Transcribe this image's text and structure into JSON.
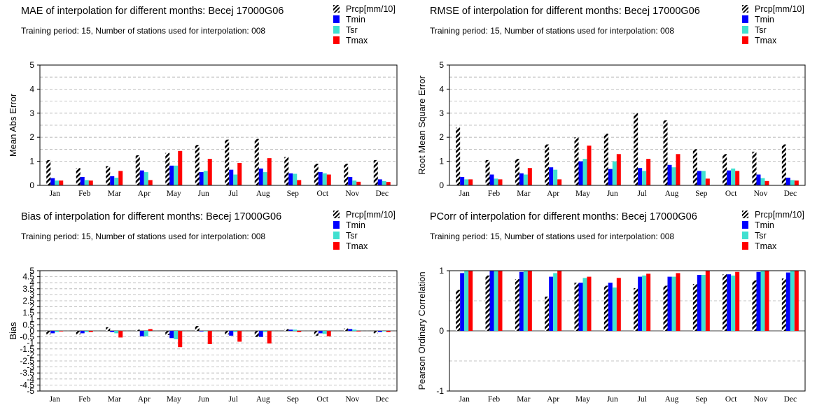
{
  "legend": [
    {
      "name": "Prcp[mm/10]",
      "color": "#000000",
      "pattern": "hatch"
    },
    {
      "name": "Tmin",
      "color": "#0000ff"
    },
    {
      "name": "Tsr",
      "color": "#40e0d0"
    },
    {
      "name": "Tmax",
      "color": "#ff0000"
    }
  ],
  "subtitle": "Training period: 15, Number of stations used for interpolation: 008",
  "chart_data": [
    {
      "type": "bar",
      "title": "MAE of interpolation for different months: Becej  17000G06",
      "ylabel": "Mean Abs Error",
      "ylim": [
        0,
        5
      ],
      "yticks": [
        "0",
        "1",
        "2",
        "3",
        "4",
        "5"
      ],
      "yticks_values": [
        0,
        1,
        2,
        3,
        4,
        5
      ],
      "grid": "dashed",
      "legend_position": "top-right",
      "categories": [
        "Jan",
        "Feb",
        "Mar",
        "Apr",
        "May",
        "Jun",
        "Jul",
        "Aug",
        "Sep",
        "Oct",
        "Nov",
        "Dec"
      ],
      "series": [
        {
          "name": "Prcp[mm/10]",
          "values": [
            1.05,
            0.72,
            0.8,
            1.25,
            1.35,
            1.68,
            1.9,
            1.93,
            1.18,
            0.9,
            0.9,
            1.05
          ]
        },
        {
          "name": "Tmin",
          "values": [
            0.3,
            0.35,
            0.38,
            0.62,
            0.82,
            0.55,
            0.65,
            0.7,
            0.5,
            0.55,
            0.35,
            0.25
          ]
        },
        {
          "name": "Tsr",
          "values": [
            0.2,
            0.22,
            0.32,
            0.55,
            0.82,
            0.6,
            0.45,
            0.55,
            0.48,
            0.5,
            0.2,
            0.18
          ]
        },
        {
          "name": "Tmax",
          "values": [
            0.2,
            0.2,
            0.6,
            0.22,
            1.43,
            1.1,
            0.93,
            1.13,
            0.22,
            0.45,
            0.15,
            0.14
          ]
        }
      ]
    },
    {
      "type": "bar",
      "title": "RMSE of interpolation for different months: Becej  17000G06",
      "ylabel": "Root Mean Square Error",
      "ylim": [
        0,
        5
      ],
      "yticks": [
        "0",
        "1",
        "2",
        "3",
        "4",
        "5"
      ],
      "yticks_values": [
        0,
        1,
        2,
        3,
        4,
        5
      ],
      "grid": "dashed",
      "legend_position": "top-right",
      "categories": [
        "Jan",
        "Feb",
        "Mar",
        "Apr",
        "May",
        "Jun",
        "Jul",
        "Aug",
        "Sep",
        "Oct",
        "Nov",
        "Dec"
      ],
      "series": [
        {
          "name": "Prcp[mm/10]",
          "values": [
            2.4,
            1.05,
            1.1,
            1.7,
            2.0,
            2.15,
            3.0,
            2.7,
            1.5,
            1.3,
            1.4,
            1.7
          ]
        },
        {
          "name": "Tmin",
          "values": [
            0.35,
            0.45,
            0.5,
            0.75,
            1.0,
            0.68,
            0.72,
            0.85,
            0.6,
            0.62,
            0.45,
            0.32
          ]
        },
        {
          "name": "Tsr",
          "values": [
            0.25,
            0.28,
            0.45,
            0.65,
            1.1,
            1.0,
            0.6,
            0.75,
            0.6,
            0.7,
            0.3,
            0.22
          ]
        },
        {
          "name": "Tmax",
          "values": [
            0.25,
            0.25,
            0.72,
            0.25,
            1.65,
            1.3,
            1.1,
            1.3,
            0.28,
            0.6,
            0.18,
            0.2
          ]
        }
      ]
    },
    {
      "type": "bar",
      "title": "Bias of interpolation for different months: Becej  17000G06",
      "ylabel": "Bias",
      "ylim": [
        -5,
        5
      ],
      "yticks": [
        "5",
        "4.5",
        "4",
        "3.5",
        "3",
        "2.5",
        "2",
        "1.5",
        "1",
        "0.5",
        "0",
        "-0.5",
        "-1",
        "-1.5",
        "-2",
        "-2.5",
        "-3",
        "-3.5",
        "-4",
        "-4.5",
        "-5"
      ],
      "yticks_values": [
        5,
        4.5,
        4,
        3.5,
        3,
        2.5,
        2,
        1.5,
        1,
        0.5,
        0,
        -0.5,
        -1,
        -1.5,
        -2,
        -2.5,
        -3,
        -3.5,
        -4,
        -4.5,
        -5
      ],
      "grid": "dashed",
      "legend_position": "top-right",
      "categories": [
        "Jan",
        "Feb",
        "Mar",
        "Apr",
        "May",
        "Jun",
        "Jul",
        "Aug",
        "Sep",
        "Oct",
        "Nov",
        "Dec"
      ],
      "series": [
        {
          "name": "Prcp[mm/10]",
          "values": [
            -0.3,
            -0.3,
            0.3,
            0.1,
            -0.35,
            0.4,
            -0.3,
            -0.5,
            0.15,
            -0.4,
            0.2,
            -0.2
          ]
        },
        {
          "name": "Tmin",
          "values": [
            -0.2,
            -0.2,
            -0.1,
            -0.45,
            -0.6,
            -0.05,
            -0.4,
            -0.5,
            0.1,
            -0.2,
            0.15,
            -0.1
          ]
        },
        {
          "name": "Tsr",
          "values": [
            -0.1,
            -0.1,
            -0.2,
            -0.45,
            -0.7,
            -0.05,
            -0.1,
            -0.1,
            0.1,
            -0.25,
            0.1,
            -0.05
          ]
        },
        {
          "name": "Tmax",
          "values": [
            -0.05,
            -0.1,
            -0.55,
            0.15,
            -1.35,
            -1.1,
            -0.9,
            -1.05,
            -0.1,
            -0.45,
            -0.05,
            -0.1
          ]
        }
      ]
    },
    {
      "type": "bar",
      "title": "PCorr of interpolation for different months: Becej  17000G06",
      "ylabel": "Pearson Ordinary Correlation",
      "ylim": [
        -1,
        1
      ],
      "yticks": [
        "1",
        "0",
        "-1"
      ],
      "yticks_values": [
        1,
        0,
        -1
      ],
      "grid": "dashed-every-0.5",
      "legend_position": "top-right",
      "categories": [
        "Jan",
        "Feb",
        "Mar",
        "Apr",
        "May",
        "Jun",
        "Jul",
        "Aug",
        "Sep",
        "Oct",
        "Nov",
        "Dec"
      ],
      "series": [
        {
          "name": "Prcp[mm/10]",
          "values": [
            0.68,
            0.92,
            0.86,
            0.57,
            0.8,
            0.75,
            0.71,
            0.75,
            0.78,
            0.94,
            0.84,
            0.87
          ]
        },
        {
          "name": "Tmin",
          "values": [
            0.96,
            1.0,
            0.98,
            0.9,
            0.8,
            0.8,
            0.9,
            0.9,
            0.93,
            0.94,
            0.98,
            0.97
          ]
        },
        {
          "name": "Tsr",
          "values": [
            1.0,
            1.0,
            1.0,
            0.96,
            0.88,
            0.72,
            0.92,
            0.9,
            0.93,
            0.92,
            1.0,
            1.0
          ]
        },
        {
          "name": "Tmax",
          "values": [
            1.0,
            1.0,
            1.0,
            1.0,
            0.9,
            0.88,
            0.95,
            0.96,
            1.0,
            0.98,
            1.0,
            1.0
          ]
        }
      ]
    }
  ]
}
